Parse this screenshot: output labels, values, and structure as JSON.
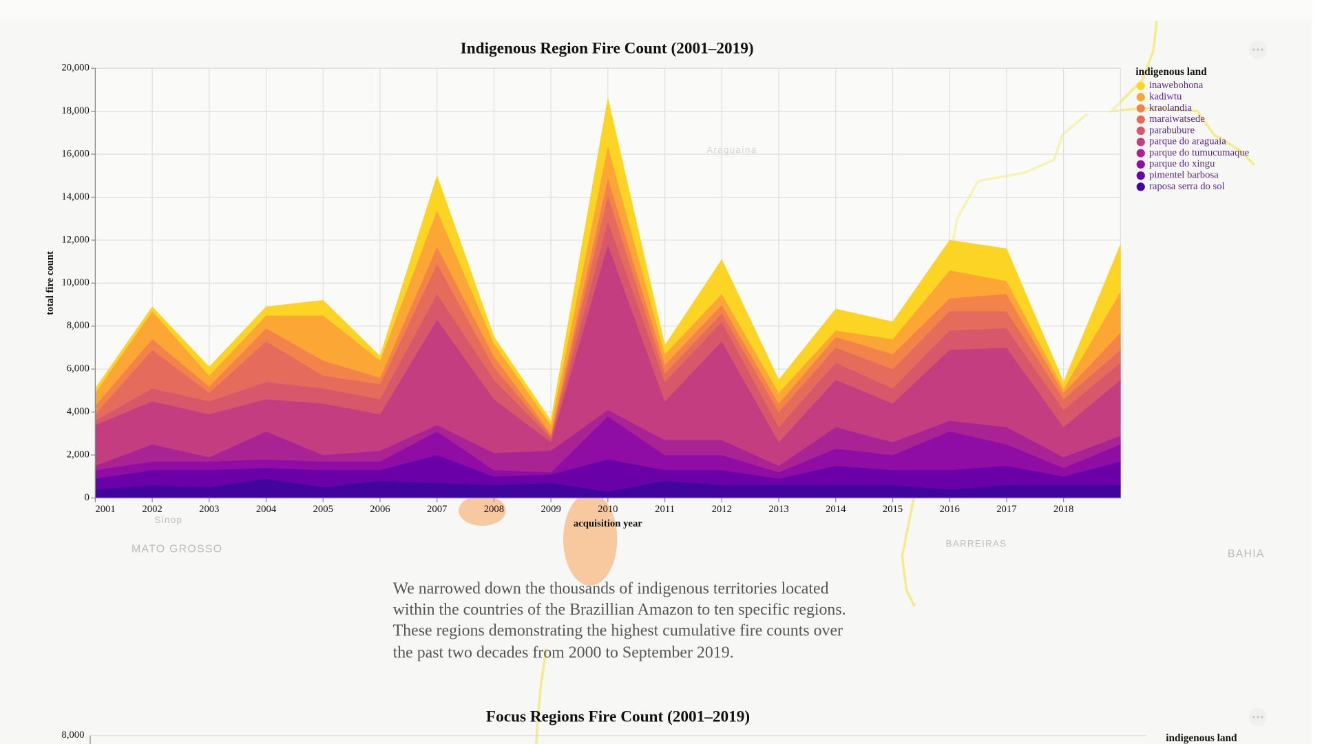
{
  "chart_data": [
    {
      "type": "area",
      "stacked": true,
      "title": "Indigenous Region Fire Count (2001–2019)",
      "x_label": "acquisition year",
      "y_label": "total fire count",
      "legend_title": "indigenous land",
      "legend": "top-right",
      "grid": true,
      "x": [
        2001,
        2002,
        2003,
        2004,
        2005,
        2006,
        2007,
        2008,
        2009,
        2010,
        2011,
        2012,
        2013,
        2014,
        2015,
        2016,
        2017,
        2018,
        2019
      ],
      "xlim": [
        2001,
        2019
      ],
      "xticks": [
        2001,
        2002,
        2003,
        2004,
        2005,
        2006,
        2007,
        2008,
        2009,
        2010,
        2011,
        2012,
        2013,
        2014,
        2015,
        2016,
        2017,
        2018
      ],
      "ylim": [
        0,
        20000
      ],
      "yticks": [
        0,
        {
          "value": 2000,
          "label": "2,000"
        },
        {
          "value": 4000,
          "label": "4,000"
        },
        {
          "value": 6000,
          "label": "6,000"
        },
        {
          "value": 8000,
          "label": "8,000"
        },
        {
          "value": 10000,
          "label": "10,000"
        },
        {
          "value": 12000,
          "label": "12,000"
        },
        {
          "value": 14000,
          "label": "14,000"
        },
        {
          "value": 16000,
          "label": "16,000"
        },
        {
          "value": 18000,
          "label": "18,000"
        },
        {
          "value": 20000,
          "label": "20,000"
        }
      ],
      "series": [
        {
          "name": "inawebohona",
          "color": "#fbd424",
          "values": [
            200,
            200,
            400,
            400,
            700,
            200,
            1600,
            300,
            200,
            2200,
            400,
            1600,
            600,
            1000,
            800,
            1400,
            1500,
            300,
            2200
          ]
        },
        {
          "name": "kadiwtu",
          "color": "#fca636",
          "values": [
            600,
            1300,
            500,
            600,
            2100,
            800,
            1700,
            600,
            400,
            1500,
            500,
            500,
            500,
            300,
            700,
            1300,
            600,
            200,
            1900
          ]
        },
        {
          "name": "kraolandia",
          "color": "#f2844b",
          "values": [
            400,
            500,
            300,
            600,
            700,
            300,
            800,
            500,
            100,
            800,
            400,
            400,
            400,
            500,
            700,
            600,
            800,
            300,
            800
          ]
        },
        {
          "name": "maraiwatsede",
          "color": "#e56b5d",
          "values": [
            300,
            1800,
            400,
            1900,
            600,
            700,
            1400,
            600,
            100,
            1200,
            400,
            400,
            700,
            700,
            900,
            900,
            800,
            500,
            600
          ]
        },
        {
          "name": "parabubure",
          "color": "#d8576b",
          "values": [
            200,
            600,
            600,
            800,
            700,
            700,
            1200,
            900,
            200,
            1100,
            900,
            900,
            700,
            800,
            700,
            900,
            900,
            800,
            800
          ]
        },
        {
          "name": "parque do araguaia",
          "color": "#c33d80",
          "values": [
            1900,
            2000,
            2000,
            1500,
            2400,
            1700,
            4900,
            2500,
            400,
            7700,
            1800,
            4600,
            1100,
            2200,
            1800,
            3300,
            3700,
            1400,
            2600
          ]
        },
        {
          "name": "parque do tumucumaque",
          "color": "#aa2395",
          "values": [
            200,
            800,
            200,
            1300,
            300,
            500,
            300,
            800,
            1000,
            300,
            700,
            700,
            300,
            1000,
            600,
            500,
            800,
            500,
            400
          ]
        },
        {
          "name": "parque do xingu",
          "color": "#8f0da4",
          "values": [
            400,
            400,
            400,
            400,
            400,
            400,
            1100,
            300,
            100,
            2000,
            700,
            700,
            300,
            800,
            700,
            1800,
            1000,
            400,
            800
          ]
        },
        {
          "name": "pimentel barbosa",
          "color": "#6a00a8",
          "values": [
            500,
            700,
            800,
            500,
            800,
            500,
            1300,
            400,
            400,
            1500,
            500,
            700,
            300,
            900,
            700,
            900,
            900,
            400,
            1100
          ]
        },
        {
          "name": "raposa serra do sol",
          "color": "#41049d",
          "values": [
            400,
            600,
            500,
            900,
            500,
            800,
            700,
            600,
            700,
            300,
            800,
            600,
            600,
            600,
            600,
            400,
            600,
            600,
            600
          ]
        }
      ]
    },
    {
      "type": "area",
      "title": "Focus Regions Fire Count (2001–2019)",
      "legend_title": "indigenous land",
      "yticks": [
        {
          "value": 8000,
          "label": "8,000"
        }
      ]
    }
  ],
  "paragraph": {
    "lines": [
      "We narrowed down the thousands of indigenous territories located",
      "within the countries of the Brazillian Amazon to ten specific regions.",
      "These regions demonstrating the highest cumulative fire counts over",
      "the past two decades from 2000 to September 2019."
    ]
  },
  "map": {
    "labels": [
      "Araguaína",
      "Sinop",
      "MATO GROSSO",
      "BARREIRAS",
      "BAHIA"
    ]
  }
}
